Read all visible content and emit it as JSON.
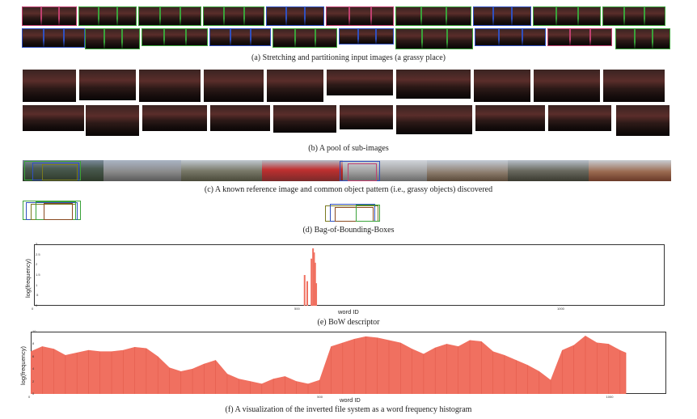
{
  "captions": {
    "a": "(a) Stretching and partitioning input images (a grassy place)",
    "b": "(b) A pool of sub-images",
    "c": "(c) A known reference image and common object pattern (i.e., grassy objects) discovered",
    "d": "(d) Bag-of-Bounding-Boxes",
    "e": "(e) BoW descriptor",
    "f": "(f) A visualization of the inverted file system as a word frequency histogram"
  },
  "colors": {
    "bar": "#f07060",
    "green": "#3aa23a",
    "blue": "#3050c0",
    "olive": "#7a7a20",
    "brown": "#8a4a20",
    "pink": "#c04070"
  },
  "chart_data": [
    {
      "type": "bar",
      "id": "e",
      "title": "",
      "xlabel": "word ID",
      "ylabel": "log(frequency)",
      "xlim": [
        0,
        1200
      ],
      "ylim": [
        0,
        3
      ],
      "xticks": [
        "0",
        "500",
        "1000"
      ],
      "yticks": [
        "0",
        ".5",
        "1",
        "1.5",
        "2",
        "2.5",
        "3"
      ],
      "x": [
        515,
        520,
        528,
        531,
        533,
        535,
        537
      ],
      "values": [
        1.5,
        1.2,
        2.3,
        2.8,
        2.6,
        2.1,
        1.1
      ]
    },
    {
      "type": "area",
      "id": "f",
      "title": "",
      "xlabel": "word ID",
      "ylabel": "log(frequency)",
      "xlim": [
        0,
        1100
      ],
      "ylim": [
        0,
        10
      ],
      "xticks": [
        "0",
        "500",
        "1000"
      ],
      "yticks": [
        "0",
        "2",
        "4",
        "6",
        "8",
        "10"
      ],
      "x": [
        0,
        20,
        40,
        60,
        80,
        100,
        120,
        140,
        160,
        180,
        200,
        220,
        240,
        260,
        280,
        300,
        320,
        340,
        360,
        380,
        400,
        420,
        440,
        460,
        480,
        500,
        520,
        540,
        560,
        580,
        600,
        620,
        640,
        660,
        680,
        700,
        720,
        740,
        760,
        780,
        800,
        820,
        840,
        860,
        880,
        900,
        920,
        940,
        960,
        980,
        1000,
        1020,
        1030
      ],
      "values": [
        6.8,
        7.6,
        7.2,
        6.2,
        6.6,
        7.0,
        6.8,
        6.8,
        7.0,
        7.5,
        7.3,
        6.0,
        4.2,
        3.6,
        4.0,
        4.8,
        5.4,
        3.2,
        2.4,
        2.0,
        1.6,
        2.4,
        2.8,
        2.0,
        1.6,
        2.2,
        7.6,
        8.2,
        8.8,
        9.2,
        9.0,
        8.6,
        8.2,
        7.2,
        6.4,
        7.4,
        8.0,
        7.6,
        8.6,
        8.4,
        6.8,
        6.2,
        5.4,
        4.6,
        3.6,
        2.2,
        7.0,
        7.8,
        9.3,
        8.2,
        8.0,
        7.0,
        6.6
      ]
    }
  ]
}
